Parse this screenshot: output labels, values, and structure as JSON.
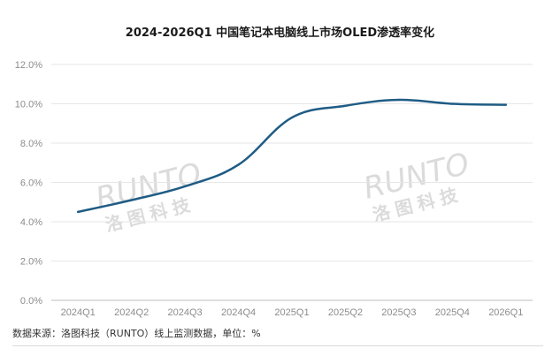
{
  "chart_data": {
    "type": "line",
    "title": "2024-2026Q1 中国笔记本电脑线上市场OLED渗透率变化",
    "categories": [
      "2024Q1",
      "2024Q2",
      "2024Q3",
      "2024Q4",
      "2025Q1",
      "2025Q2",
      "2025Q3",
      "2025Q4",
      "2026Q1"
    ],
    "series": [
      {
        "values": [
          4.5,
          5.1,
          5.8,
          6.9,
          9.3,
          9.9,
          10.2,
          10.0,
          9.95
        ]
      }
    ],
    "yticks": [
      "0.0%",
      "2.0%",
      "4.0%",
      "6.0%",
      "8.0%",
      "10.0%",
      "12.0%"
    ],
    "ylim": [
      0,
      12
    ],
    "grid": true,
    "line_color": "#1f5c85",
    "source": "数据来源：洛图科技（RUNTO）线上监测数据，单位：%"
  },
  "watermark": {
    "latin": "RUNTO",
    "chinese": "洛图科技",
    "color": "#c9c9c9"
  }
}
